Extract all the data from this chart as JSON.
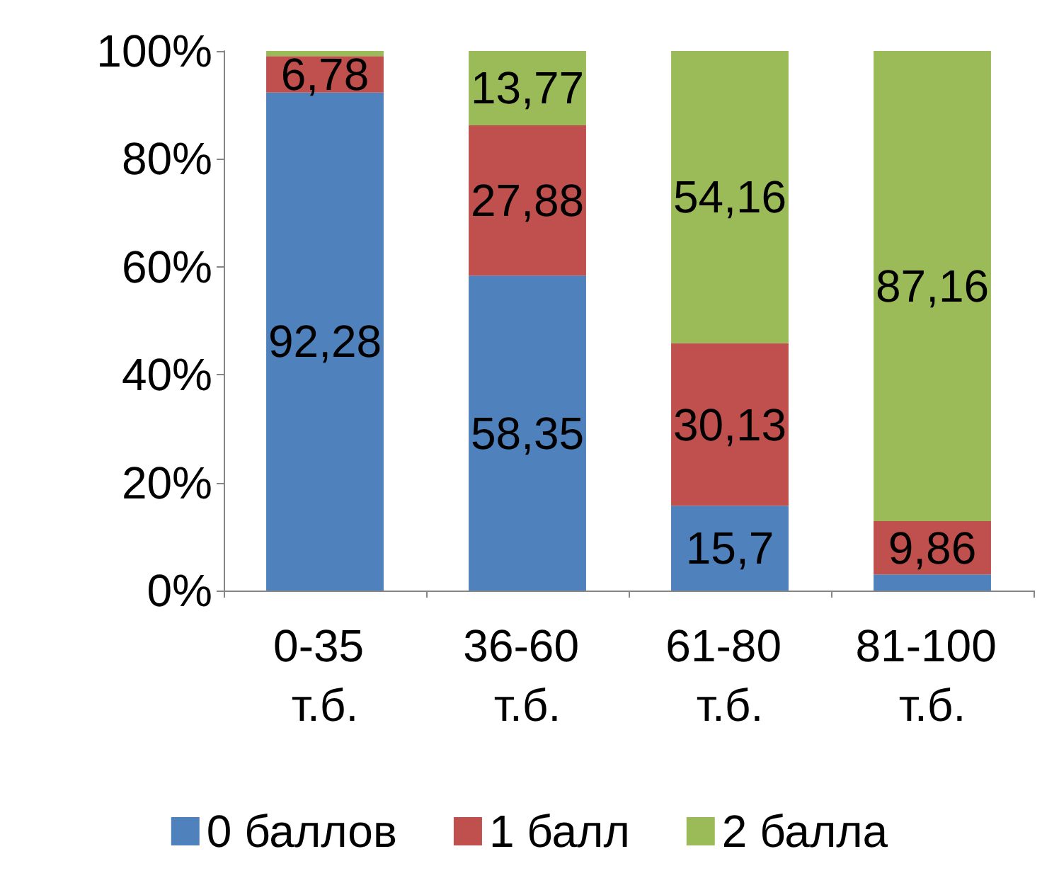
{
  "chart_data": {
    "type": "bar",
    "stacked": true,
    "categories": [
      "0-35 т.б.",
      "36-60 т.б.",
      "61-80 т.б.",
      "81-100 т.б."
    ],
    "series": [
      {
        "name": "0 баллов",
        "color": "#4f81bd",
        "values": [
          92.28,
          58.35,
          15.7,
          3
        ],
        "value_labels": [
          "92,28",
          "58,35",
          "15,7",
          null
        ]
      },
      {
        "name": "1 балл",
        "color": "#c0504d",
        "values": [
          6.78,
          27.88,
          30.13,
          9.86
        ],
        "value_labels": [
          "6,78",
          "27,88",
          "30,13",
          "9,86"
        ]
      },
      {
        "name": "2 балла",
        "color": "#9bbb59",
        "values": [
          1,
          13.77,
          54.16,
          87.16
        ],
        "value_labels": [
          null,
          "13,77",
          "54,16",
          "87,16"
        ]
      }
    ],
    "ylim": [
      0,
      100
    ],
    "yticks": [
      {
        "value": 0,
        "label": "0%"
      },
      {
        "value": 20,
        "label": "20%"
      },
      {
        "value": 40,
        "label": "40%"
      },
      {
        "value": 60,
        "label": "60%"
      },
      {
        "value": 80,
        "label": "80%"
      },
      {
        "value": 100,
        "label": "100%"
      }
    ],
    "grid": false,
    "legend": "bottom"
  }
}
